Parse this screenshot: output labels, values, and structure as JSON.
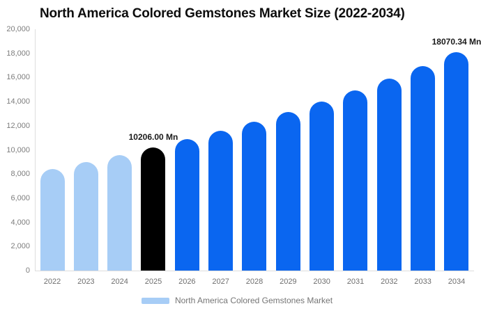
{
  "title": "North America Colored Gemstones Market Size (2022-2034)",
  "legend": {
    "label": "North America Colored Gemstones Market",
    "swatch_color": "#a7cdf6"
  },
  "colors": {
    "historical_bar": "#a7cdf6",
    "base_year_bar": "#000000",
    "forecast_bar": "#0a66f0",
    "axis_line": "#dddddd",
    "tick_text": "#7d7d7d",
    "title_text": "#0d0d0d"
  },
  "chart_data": {
    "type": "bar",
    "title": "North America Colored Gemstones Market Size (2022-2034)",
    "xlabel": "",
    "ylabel": "",
    "unit": "Mn",
    "ylim": [
      0,
      20000
    ],
    "ytick_step": 2000,
    "ytick_labels": [
      "20,000",
      "18,000",
      "16,000",
      "14,000",
      "12,000",
      "10,000",
      "8,000",
      "6,000",
      "4,000",
      "2,000",
      "0"
    ],
    "grid": false,
    "legend_position": "bottom",
    "categories": [
      "2022",
      "2023",
      "2024",
      "2025",
      "2026",
      "2027",
      "2028",
      "2029",
      "2030",
      "2031",
      "2032",
      "2033",
      "2034"
    ],
    "values": [
      8440,
      8990,
      9580,
      10206.0,
      10875,
      11590,
      12345,
      13155,
      14015,
      14935,
      15910,
      16955,
      18070.34
    ],
    "bar_colors": [
      "#a7cdf6",
      "#a7cdf6",
      "#a7cdf6",
      "#000000",
      "#0a66f0",
      "#0a66f0",
      "#0a66f0",
      "#0a66f0",
      "#0a66f0",
      "#0a66f0",
      "#0a66f0",
      "#0a66f0",
      "#0a66f0"
    ],
    "annotations": [
      {
        "category": "2025",
        "text": "10206.00 Mn"
      },
      {
        "category": "2034",
        "text": "18070.34 Mn"
      }
    ]
  }
}
